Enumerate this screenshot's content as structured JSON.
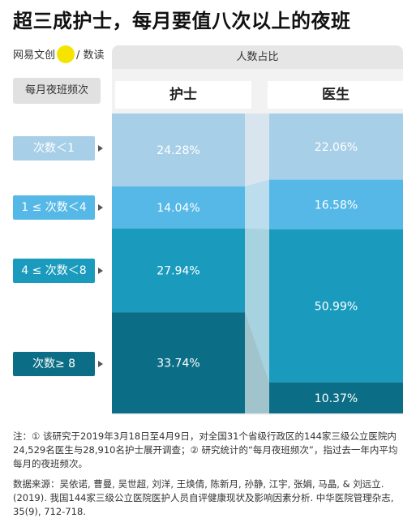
{
  "title": "超三成护士，每月要值八次以上的夜班",
  "brand": {
    "left": "网易文创",
    "right": "/ 数读"
  },
  "header": "人数占比",
  "frequency_label": "每月夜班频次",
  "categories": [
    "次数＜1",
    "1 ≤ 次数＜4",
    "4 ≤ 次数＜8",
    "次数≥ 8"
  ],
  "category_colors": [
    "#a8cfe8",
    "#56b8e6",
    "#1a9bbd",
    "#0c6e86"
  ],
  "chart_data": {
    "type": "stacked-bar",
    "categories": [
      "次数＜1",
      "1 ≤ 次数＜4",
      "4 ≤ 次数＜8",
      "次数≥ 8"
    ],
    "series": [
      {
        "name": "护士",
        "values": [
          24.28,
          14.04,
          27.94,
          33.74
        ]
      },
      {
        "name": "医生",
        "values": [
          22.06,
          16.58,
          50.99,
          10.37
        ]
      }
    ],
    "labels": {
      "护士": [
        "24.28%",
        "14.04%",
        "27.94%",
        "33.74%"
      ],
      "医生": [
        "22.06%",
        "16.58%",
        "50.99%",
        "10.37%"
      ]
    },
    "unit": "%"
  },
  "note": "注：① 该研究于2019年3月18日至4月9日，对全国31个省级行政区的144家三级公立医院内24,529名医生与28,910名护士展开调查；② 研究统计的“每月夜班频次”，指过去一年内平均每月的夜班频次。",
  "source": "数据来源：吴依诺, 曹曼, 吴世超, 刘洋, 王焕倩, 陈新月, 孙静, 江宇, 张娟, 马晶, & 刘远立. (2019). 我国144家三级公立医院医护人员自评健康现状及影响因素分析. 中华医院管理杂志, 35(9), 712-718."
}
